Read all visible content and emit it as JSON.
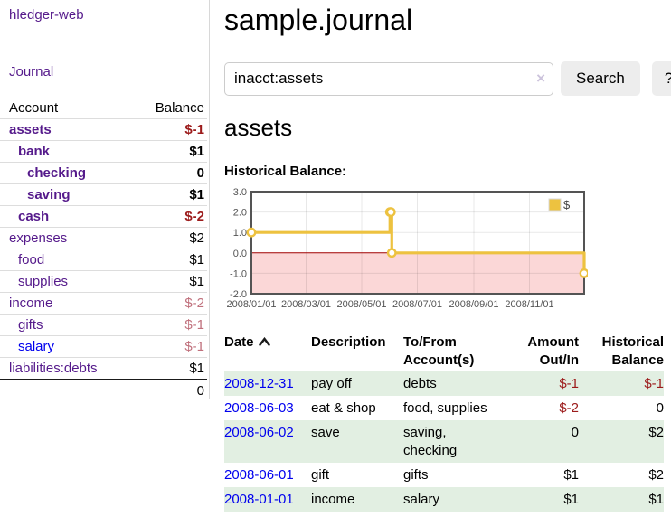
{
  "app": {
    "title": "hledger-web"
  },
  "sidebar": {
    "journal_link": "Journal",
    "accounts_table": {
      "headers": {
        "account": "Account",
        "balance": "Balance"
      },
      "accounts": [
        {
          "name": "assets",
          "indent": 0,
          "in_query": true,
          "balance": "$-1",
          "balance_style": "neg-strong"
        },
        {
          "name": "bank",
          "indent": 1,
          "in_query": true,
          "balance": "$1",
          "balance_style": "strong"
        },
        {
          "name": "checking",
          "indent": 2,
          "in_query": true,
          "balance": "0",
          "balance_style": "strong"
        },
        {
          "name": "saving",
          "indent": 2,
          "in_query": true,
          "balance": "$1",
          "balance_style": "strong"
        },
        {
          "name": "cash",
          "indent": 1,
          "in_query": true,
          "balance": "$-2",
          "balance_style": "neg-strong"
        },
        {
          "name": "expenses",
          "indent": 0,
          "in_query": false,
          "balance": "$2",
          "balance_style": "normal"
        },
        {
          "name": "food",
          "indent": 1,
          "in_query": false,
          "balance": "$1",
          "balance_style": "normal"
        },
        {
          "name": "supplies",
          "indent": 1,
          "in_query": false,
          "balance": "$1",
          "balance_style": "normal"
        },
        {
          "name": "income",
          "indent": 0,
          "in_query": false,
          "balance": "$-2",
          "balance_style": "neg-soft"
        },
        {
          "name": "gifts",
          "indent": 1,
          "in_query": false,
          "balance": "$-1",
          "balance_style": "neg-soft"
        },
        {
          "name": "salary",
          "indent": 1,
          "in_query": false,
          "unvisited": true,
          "balance": "$-1",
          "balance_style": "neg-soft"
        },
        {
          "name": "liabilities:debts",
          "indent": 0,
          "in_query": false,
          "balance": "$1",
          "balance_style": "normal"
        }
      ],
      "total": "0"
    }
  },
  "header": {
    "title": "sample.journal"
  },
  "search": {
    "value": "inacct:assets",
    "clear_icon": "×",
    "button_label": "Search",
    "help_label": "?"
  },
  "account_page": {
    "heading": "assets",
    "chart_heading": "Historical Balance:"
  },
  "chart_data": {
    "type": "line",
    "step": true,
    "title": "Historical Balance:",
    "xlabel": "",
    "ylabel": "",
    "series": [
      {
        "name": "$",
        "color": "#edc240",
        "points": [
          [
            "2008-01-01",
            1
          ],
          [
            "2008-06-01",
            2
          ],
          [
            "2008-06-02",
            2
          ],
          [
            "2008-06-03",
            0
          ],
          [
            "2008-12-31",
            -1
          ]
        ]
      }
    ],
    "x_tick_labels": [
      "2008/01/01",
      "2008/03/01",
      "2008/05/01",
      "2008/07/01",
      "2008/09/01",
      "2008/11/01"
    ],
    "y_ticks": [
      3,
      2,
      1,
      0,
      -1,
      -2
    ],
    "y_tick_labels": [
      "3.0",
      "2.0",
      "1.0",
      "0.0",
      "-1.0",
      "-2.0"
    ],
    "ylim": [
      -2,
      3
    ],
    "xlim": [
      "2008-01-01",
      "2008-12-31"
    ],
    "legend": {
      "label": "$",
      "swatch_color": "#edc240",
      "position": "top-right"
    },
    "negative_region_fill": "#fbd7d7",
    "zero_line_color": "#a00000",
    "border_color": "#545454",
    "grid_color": "rgba(0,0,0,0.09)",
    "tick_color": "#545454"
  },
  "register": {
    "columns": [
      {
        "label": "Date",
        "sort": "ascending"
      },
      {
        "label": "Description"
      },
      {
        "label": "To/From Account(s)"
      },
      {
        "label": "Amount Out/In"
      },
      {
        "label": "Historical Balance"
      }
    ],
    "rows": [
      {
        "date": "2008-12-31",
        "description": "pay off",
        "accounts": "debts",
        "amount": "$-1",
        "amount_negative": true,
        "balance": "$-1",
        "balance_negative": true
      },
      {
        "date": "2008-06-03",
        "description": "eat & shop",
        "accounts": "food, supplies",
        "amount": "$-2",
        "amount_negative": true,
        "balance": "0",
        "balance_negative": false
      },
      {
        "date": "2008-06-02",
        "description": "save",
        "accounts": "saving, checking",
        "amount": "0",
        "amount_negative": false,
        "balance": "$2",
        "balance_negative": false
      },
      {
        "date": "2008-06-01",
        "description": "gift",
        "accounts": "gifts",
        "amount": "$1",
        "amount_negative": false,
        "balance": "$2",
        "balance_negative": false
      },
      {
        "date": "2008-01-01",
        "description": "income",
        "accounts": "salary",
        "amount": "$1",
        "amount_negative": false,
        "balance": "$1",
        "balance_negative": false
      }
    ]
  },
  "colors": {
    "link_purple": "#551a8b",
    "link_blue": "#0000ee",
    "negative_strong": "#9c1b1b",
    "negative_soft": "#c0707c",
    "row_stripe_green": "#e2efe2",
    "series_gold": "#edc240"
  }
}
